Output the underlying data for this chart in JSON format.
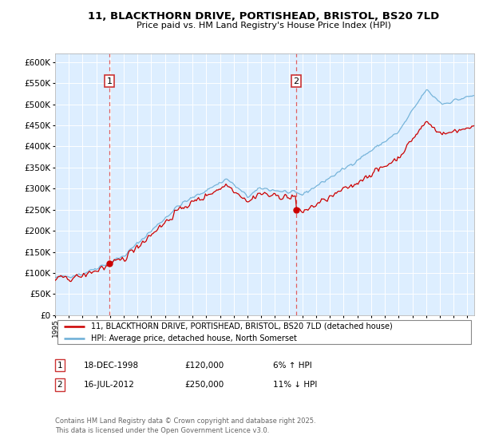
{
  "title1": "11, BLACKTHORN DRIVE, PORTISHEAD, BRISTOL, BS20 7LD",
  "title2": "Price paid vs. HM Land Registry's House Price Index (HPI)",
  "ylim": [
    0,
    620000
  ],
  "yticks": [
    0,
    50000,
    100000,
    150000,
    200000,
    250000,
    300000,
    350000,
    400000,
    450000,
    500000,
    550000,
    600000
  ],
  "sale1_date": 1998.96,
  "sale1_price": 120000,
  "sale1_label": "1",
  "sale2_date": 2012.54,
  "sale2_price": 250000,
  "sale2_label": "2",
  "hpi_color": "#6baed6",
  "price_color": "#cc0000",
  "vline_color": "#e06060",
  "background_color": "#ddeeff",
  "legend1_text": "11, BLACKTHORN DRIVE, PORTISHEAD, BRISTOL, BS20 7LD (detached house)",
  "legend2_text": "HPI: Average price, detached house, North Somerset",
  "note1_label": "1",
  "note1_date": "18-DEC-1998",
  "note1_price": "£120,000",
  "note1_pct": "6% ↑ HPI",
  "note2_label": "2",
  "note2_date": "16-JUL-2012",
  "note2_price": "£250,000",
  "note2_pct": "11% ↓ HPI",
  "footer": "Contains HM Land Registry data © Crown copyright and database right 2025.\nThis data is licensed under the Open Government Licence v3.0.",
  "xmin": 1995.0,
  "xmax": 2025.5
}
